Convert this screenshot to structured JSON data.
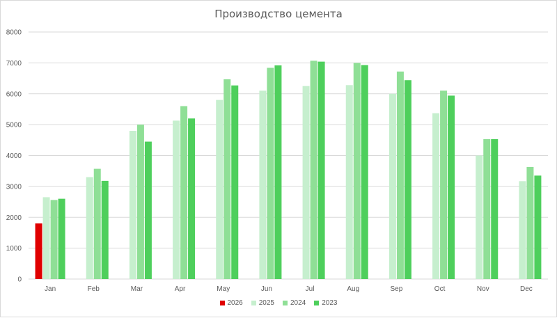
{
  "chart_data": {
    "type": "bar",
    "title": "Производство цемента",
    "xlabel": "",
    "ylabel": "",
    "ylim": [
      0,
      8000
    ],
    "yticks": [
      0,
      1000,
      2000,
      3000,
      4000,
      5000,
      6000,
      7000,
      8000
    ],
    "categories": [
      "Jan",
      "Feb",
      "Mar",
      "Apr",
      "May",
      "Jun",
      "Jul",
      "Aug",
      "Sep",
      "Oct",
      "Nov",
      "Dec"
    ],
    "grid": true,
    "legend_position": "bottom",
    "series": [
      {
        "name": "2026",
        "color": "#e00000",
        "values": [
          1800,
          null,
          null,
          null,
          null,
          null,
          null,
          null,
          null,
          null,
          null,
          null
        ]
      },
      {
        "name": "2025",
        "color": "#c6efce",
        "values": [
          2650,
          3300,
          4800,
          5130,
          5800,
          6100,
          6250,
          6280,
          6000,
          5370,
          4000,
          3170
        ]
      },
      {
        "name": "2024",
        "color": "#8fdf96",
        "values": [
          2560,
          3570,
          5000,
          5600,
          6470,
          6840,
          7070,
          7000,
          6720,
          6100,
          4530,
          3630
        ]
      },
      {
        "name": "2023",
        "color": "#4ecf5c",
        "values": [
          2600,
          3180,
          4450,
          5200,
          6270,
          6920,
          7040,
          6930,
          6440,
          5940,
          4530,
          3350
        ]
      }
    ]
  }
}
